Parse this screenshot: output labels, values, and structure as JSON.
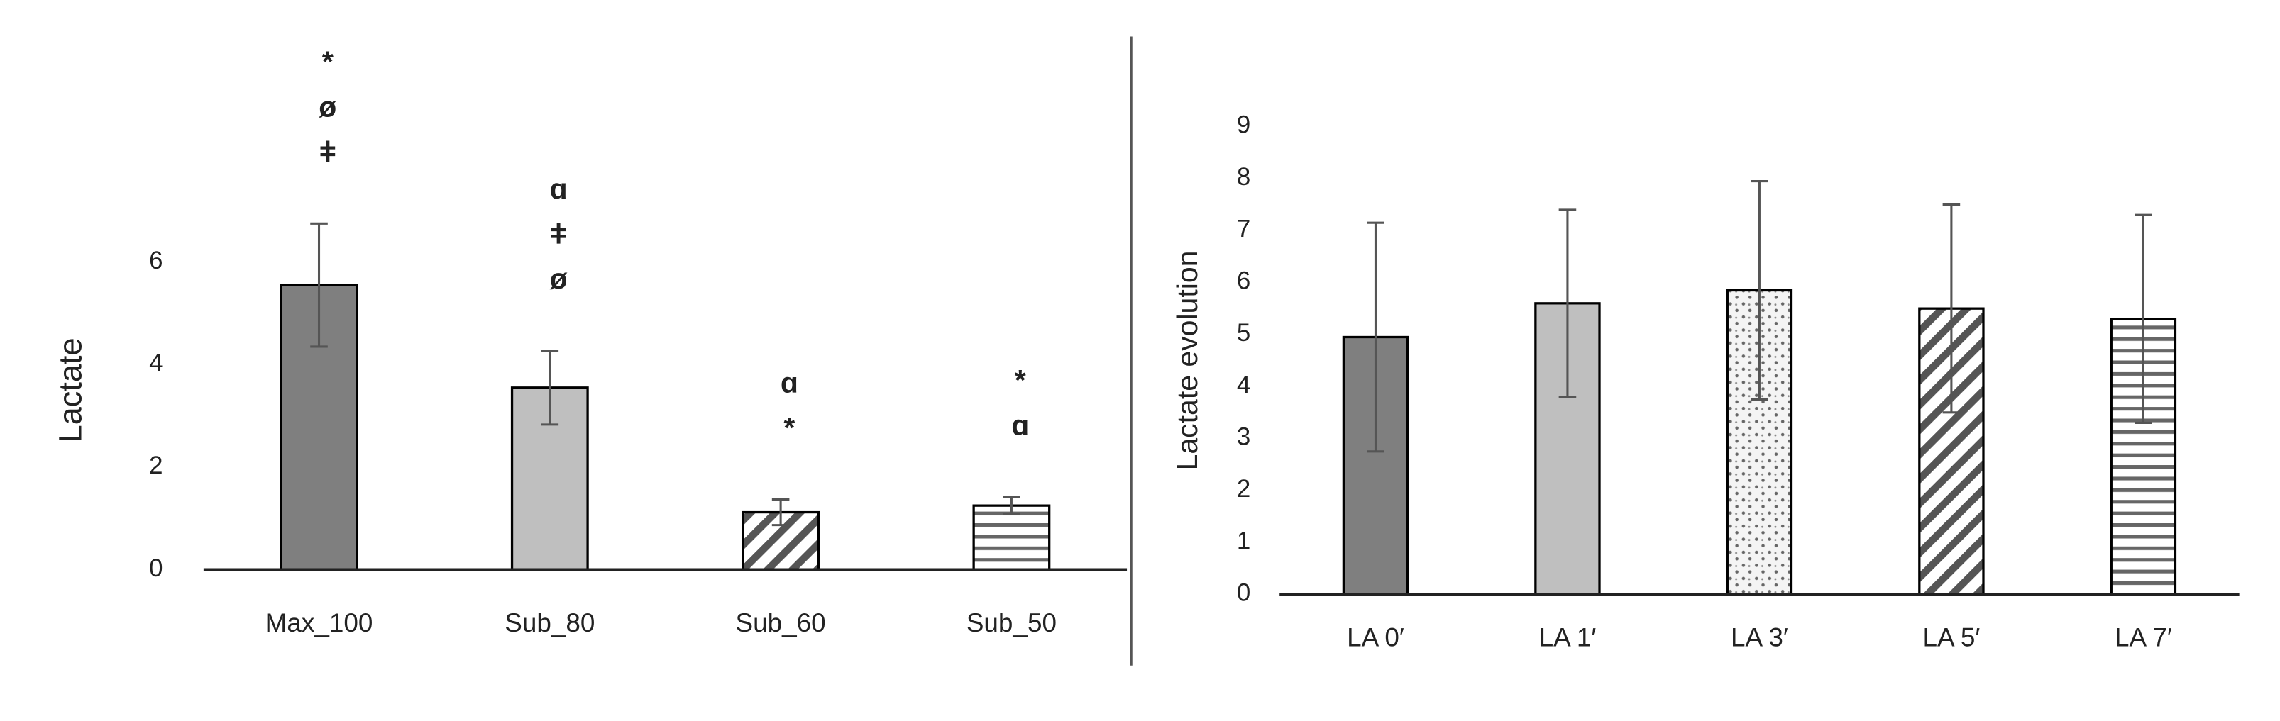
{
  "chart_data": [
    {
      "type": "bar",
      "y_label": "Lactate",
      "categories": [
        "Max_100",
        "Sub_80",
        "Sub_60",
        "Sub_50"
      ],
      "values": [
        5.55,
        3.55,
        1.12,
        1.25
      ],
      "errors": [
        1.2,
        0.72,
        0.25,
        0.17
      ],
      "fills": [
        "#7f7f7f",
        "#bfbfbf",
        "diagonal",
        "horizontal"
      ],
      "annotations": [
        [
          "*",
          "ø",
          "ǂ"
        ],
        [
          "ɑ",
          "ǂ",
          "ø"
        ],
        [
          "ɑ",
          "*"
        ],
        [
          "*",
          "ɑ"
        ]
      ],
      "ylim": [
        0,
        7
      ],
      "yticks": [
        0,
        2,
        4,
        6
      ]
    },
    {
      "type": "bar",
      "y_label": "Lactate evolution",
      "categories": [
        "LA 0′",
        "LA 1′",
        "LA 3′",
        "LA 5′",
        "LA 7′"
      ],
      "values": [
        4.95,
        5.6,
        5.85,
        5.5,
        5.3
      ],
      "errors": [
        2.2,
        1.8,
        2.1,
        2.0,
        2.0
      ],
      "fills": [
        "#7f7f7f",
        "#bfbfbf",
        "dots",
        "diagonal",
        "horizontal"
      ],
      "ylim": [
        0,
        9
      ],
      "yticks": [
        0,
        1,
        2,
        3,
        4,
        5,
        6,
        7,
        8,
        9
      ]
    }
  ]
}
